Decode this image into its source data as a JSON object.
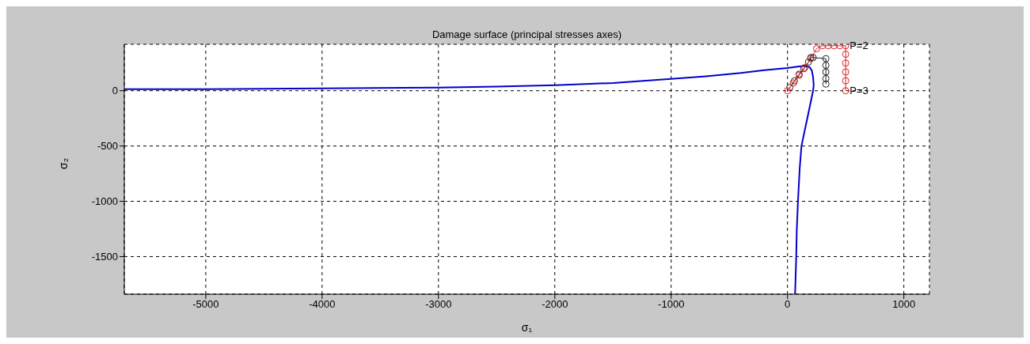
{
  "chart_data": {
    "type": "line",
    "title": "Damage surface (principal stresses axes)",
    "xlabel": "σ₁",
    "ylabel": "σ₂",
    "xlim": [
      -5700,
      1220
    ],
    "xticks": [
      -5000,
      -4000,
      -3000,
      -2000,
      -1000,
      0,
      1000
    ],
    "ylim": [
      -1840,
      420
    ],
    "yticks": [
      -1500,
      -1000,
      -500,
      0
    ],
    "grid": true,
    "legend": false,
    "series": [
      {
        "color": "#0000cc",
        "marker": "none",
        "x": [
          -5700,
          -5000,
          -4000,
          -3000,
          -2500,
          -2000,
          -1500,
          -1000,
          -700,
          -400,
          -200,
          0,
          100,
          150,
          190,
          210,
          220,
          225,
          220,
          200,
          170,
          140,
          120,
          105,
          90,
          80,
          75,
          65
        ],
        "values": [
          15,
          14,
          22,
          29,
          38,
          50,
          70,
          107,
          130,
          160,
          185,
          205,
          220,
          225,
          215,
          180,
          120,
          50,
          0,
          -100,
          -250,
          -400,
          -500,
          -700,
          -1000,
          -1250,
          -1500,
          -1840
        ]
      },
      {
        "color": "#222222",
        "marker": "circle",
        "x": [
          20,
          60,
          100,
          140,
          180,
          200,
          220,
          330,
          330,
          330,
          330,
          330
        ],
        "values": [
          30,
          90,
          150,
          200,
          260,
          300,
          300,
          290,
          230,
          170,
          110,
          60
        ]
      },
      {
        "color": "#dd2222",
        "marker": "circle",
        "x": [
          0,
          50,
          100,
          150,
          200,
          250,
          300,
          350,
          400,
          450,
          500,
          500,
          500,
          500,
          500,
          500
        ],
        "values": [
          0,
          70,
          140,
          210,
          290,
          380,
          407,
          407,
          407,
          407,
          407,
          330,
          250,
          170,
          90,
          0
        ]
      }
    ],
    "annotations": [
      {
        "text": "P=2",
        "x": 500,
        "y": 407
      },
      {
        "text": "P=3",
        "x": 500,
        "y": 0
      }
    ]
  }
}
